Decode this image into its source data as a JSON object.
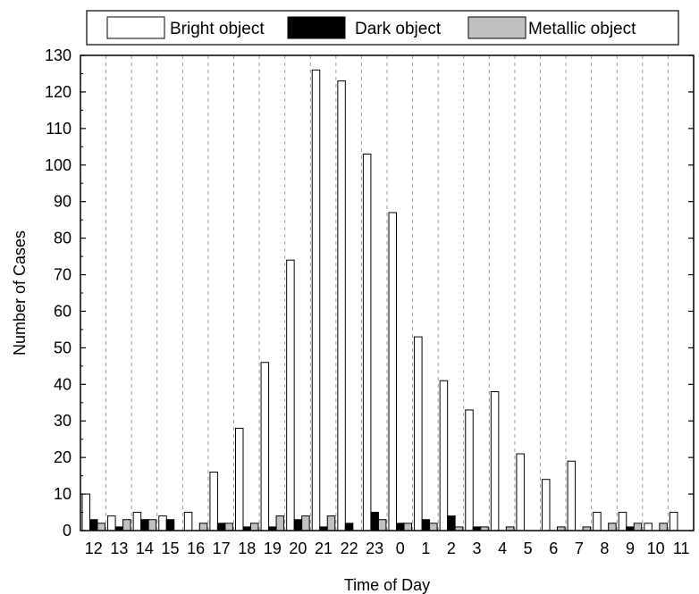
{
  "chart_data": {
    "type": "bar",
    "xlabel": "Time of Day",
    "ylabel": "Number of Cases",
    "ylim": [
      0,
      130
    ],
    "yticks": [
      0,
      10,
      20,
      30,
      40,
      50,
      60,
      70,
      80,
      90,
      100,
      110,
      120,
      130
    ],
    "grid": "vertical dashed",
    "legend_position": "top",
    "categories": [
      "12",
      "13",
      "14",
      "15",
      "16",
      "17",
      "18",
      "19",
      "20",
      "21",
      "22",
      "23",
      "0",
      "1",
      "2",
      "3",
      "4",
      "5",
      "6",
      "7",
      "8",
      "9",
      "10",
      "11"
    ],
    "series": [
      {
        "name": "Bright object",
        "color": "#ffffff",
        "values": [
          10,
          4,
          5,
          4,
          5,
          16,
          28,
          46,
          74,
          126,
          123,
          103,
          87,
          53,
          41,
          33,
          38,
          21,
          14,
          19,
          5,
          5,
          2,
          5
        ]
      },
      {
        "name": "Dark object",
        "color": "#000000",
        "values": [
          3,
          1,
          3,
          3,
          0,
          2,
          1,
          1,
          3,
          1,
          2,
          5,
          2,
          3,
          4,
          1,
          0,
          0,
          0,
          0,
          0,
          1,
          0,
          0
        ]
      },
      {
        "name": "Metallic object",
        "color": "#c0c0c0",
        "values": [
          2,
          3,
          3,
          0,
          2,
          2,
          2,
          4,
          4,
          4,
          0,
          3,
          2,
          2,
          1,
          1,
          1,
          0,
          1,
          1,
          2,
          2,
          2,
          0
        ]
      }
    ]
  }
}
